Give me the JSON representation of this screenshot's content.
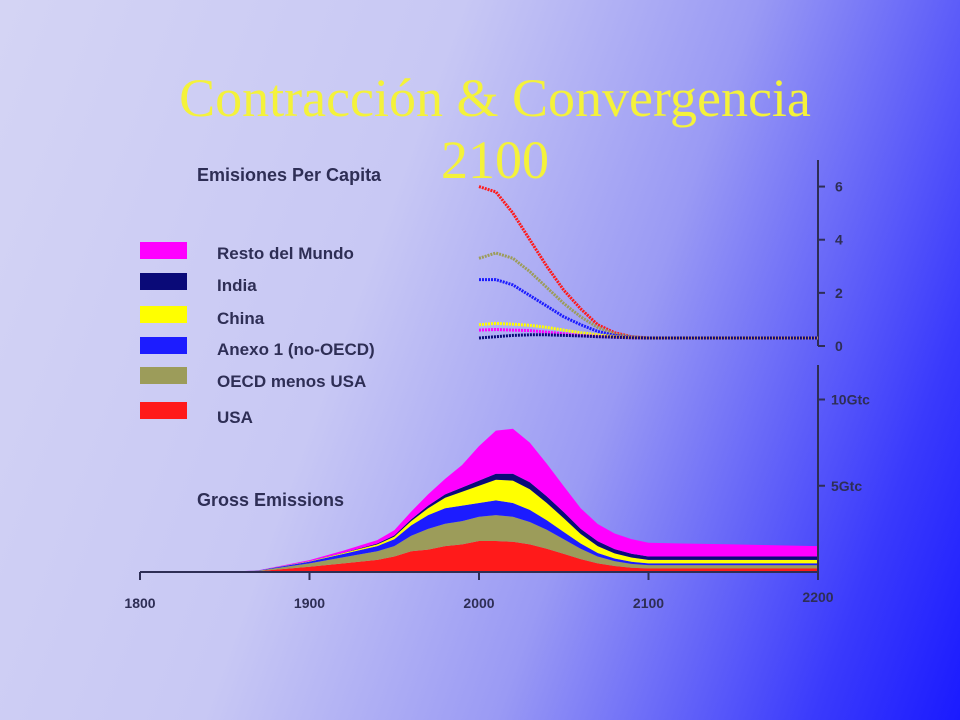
{
  "title_line1": "Contracción & Convergencia",
  "title_line2": "2100",
  "chart_data": [
    {
      "type": "line",
      "title": "Emisiones Per Capita",
      "x": [
        2000,
        2010,
        2020,
        2030,
        2040,
        2050,
        2060,
        2070,
        2080,
        2090,
        2100,
        2150,
        2200
      ],
      "ylim": [
        0,
        7
      ],
      "yticks": [
        "0",
        "2",
        "4",
        "6"
      ],
      "series": [
        {
          "name": "USA",
          "color": "#ff1a1a",
          "values": [
            6.0,
            5.8,
            5.0,
            4.0,
            3.0,
            2.1,
            1.4,
            0.8,
            0.5,
            0.35,
            0.3,
            0.3,
            0.3
          ]
        },
        {
          "name": "OECD menos USA",
          "color": "#9c9c5a",
          "values": [
            3.3,
            3.5,
            3.3,
            2.8,
            2.2,
            1.6,
            1.1,
            0.7,
            0.45,
            0.35,
            0.3,
            0.3,
            0.3
          ]
        },
        {
          "name": "Anexo 1 (no-OECD)",
          "color": "#1c1cff",
          "values": [
            2.5,
            2.5,
            2.3,
            1.9,
            1.5,
            1.1,
            0.8,
            0.55,
            0.4,
            0.33,
            0.3,
            0.3,
            0.3
          ]
        },
        {
          "name": "China",
          "color": "#ffff00",
          "values": [
            0.8,
            0.85,
            0.82,
            0.78,
            0.7,
            0.6,
            0.5,
            0.42,
            0.35,
            0.32,
            0.3,
            0.3,
            0.3
          ]
        },
        {
          "name": "Resto del  Mundo",
          "color": "#ff00ff",
          "values": [
            0.6,
            0.62,
            0.6,
            0.58,
            0.52,
            0.46,
            0.4,
            0.36,
            0.33,
            0.31,
            0.3,
            0.3,
            0.3
          ]
        },
        {
          "name": "India",
          "color": "#0a0a78",
          "values": [
            0.3,
            0.35,
            0.4,
            0.42,
            0.42,
            0.4,
            0.38,
            0.35,
            0.33,
            0.31,
            0.3,
            0.3,
            0.3
          ]
        }
      ]
    },
    {
      "type": "area",
      "title": "Gross Emissions",
      "x": [
        1800,
        1850,
        1870,
        1900,
        1920,
        1940,
        1950,
        1960,
        1970,
        1980,
        1990,
        2000,
        2010,
        2020,
        2030,
        2040,
        2050,
        2060,
        2070,
        2080,
        2090,
        2100,
        2120,
        2150,
        2200
      ],
      "xticks": [
        "1800",
        "1900",
        "2000",
        "2100",
        "2200"
      ],
      "ylim": [
        0,
        12
      ],
      "yticks": [
        "5Gtc",
        "10Gtc"
      ],
      "series": [
        {
          "name": "USA",
          "color": "#ff1a1a",
          "values": [
            0,
            0,
            0.05,
            0.3,
            0.5,
            0.7,
            0.9,
            1.2,
            1.3,
            1.5,
            1.6,
            1.8,
            1.8,
            1.75,
            1.6,
            1.35,
            1.05,
            0.75,
            0.5,
            0.35,
            0.25,
            0.2,
            0.2,
            0.2,
            0.2
          ]
        },
        {
          "name": "OECD menos USA",
          "color": "#9c9c5a",
          "values": [
            0,
            0,
            0.03,
            0.2,
            0.35,
            0.5,
            0.6,
            0.9,
            1.2,
            1.3,
            1.35,
            1.4,
            1.5,
            1.45,
            1.3,
            1.1,
            0.85,
            0.6,
            0.4,
            0.28,
            0.22,
            0.2,
            0.2,
            0.2,
            0.2
          ]
        },
        {
          "name": "Anexo 1 (no-OECD)",
          "color": "#1c1cff",
          "values": [
            0,
            0,
            0.01,
            0.1,
            0.2,
            0.3,
            0.4,
            0.6,
            0.8,
            0.9,
            0.9,
            0.8,
            0.85,
            0.8,
            0.7,
            0.55,
            0.42,
            0.3,
            0.2,
            0.15,
            0.12,
            0.1,
            0.1,
            0.1,
            0.1
          ]
        },
        {
          "name": "China",
          "color": "#ffff00",
          "values": [
            0,
            0,
            0,
            0.02,
            0.05,
            0.1,
            0.15,
            0.25,
            0.4,
            0.6,
            0.8,
            1.0,
            1.2,
            1.3,
            1.2,
            1.0,
            0.8,
            0.55,
            0.4,
            0.3,
            0.25,
            0.2,
            0.2,
            0.2,
            0.2
          ]
        },
        {
          "name": "India",
          "color": "#0a0a78",
          "values": [
            0,
            0,
            0,
            0.01,
            0.02,
            0.05,
            0.07,
            0.1,
            0.15,
            0.2,
            0.25,
            0.3,
            0.35,
            0.4,
            0.4,
            0.38,
            0.35,
            0.3,
            0.28,
            0.25,
            0.22,
            0.2,
            0.2,
            0.2,
            0.2
          ]
        },
        {
          "name": "Resto del  Mundo",
          "color": "#ff00ff",
          "values": [
            0,
            0,
            0.01,
            0.06,
            0.12,
            0.2,
            0.3,
            0.45,
            0.65,
            0.9,
            1.3,
            2.0,
            2.5,
            2.6,
            2.3,
            1.9,
            1.5,
            1.2,
            1.0,
            0.9,
            0.85,
            0.8,
            0.75,
            0.7,
            0.6
          ]
        }
      ]
    }
  ],
  "legend": [
    {
      "label": "Resto del  Mundo",
      "color": "#ff00ff"
    },
    {
      "label": "India",
      "color": "#0a0a78"
    },
    {
      "label": "China",
      "color": "#ffff00"
    },
    {
      "label": "Anexo 1 (no-OECD)",
      "color": "#1c1cff"
    },
    {
      "label": "OECD menos USA",
      "color": "#9c9c5a"
    },
    {
      "label": "USA",
      "color": "#ff1a1a"
    }
  ]
}
